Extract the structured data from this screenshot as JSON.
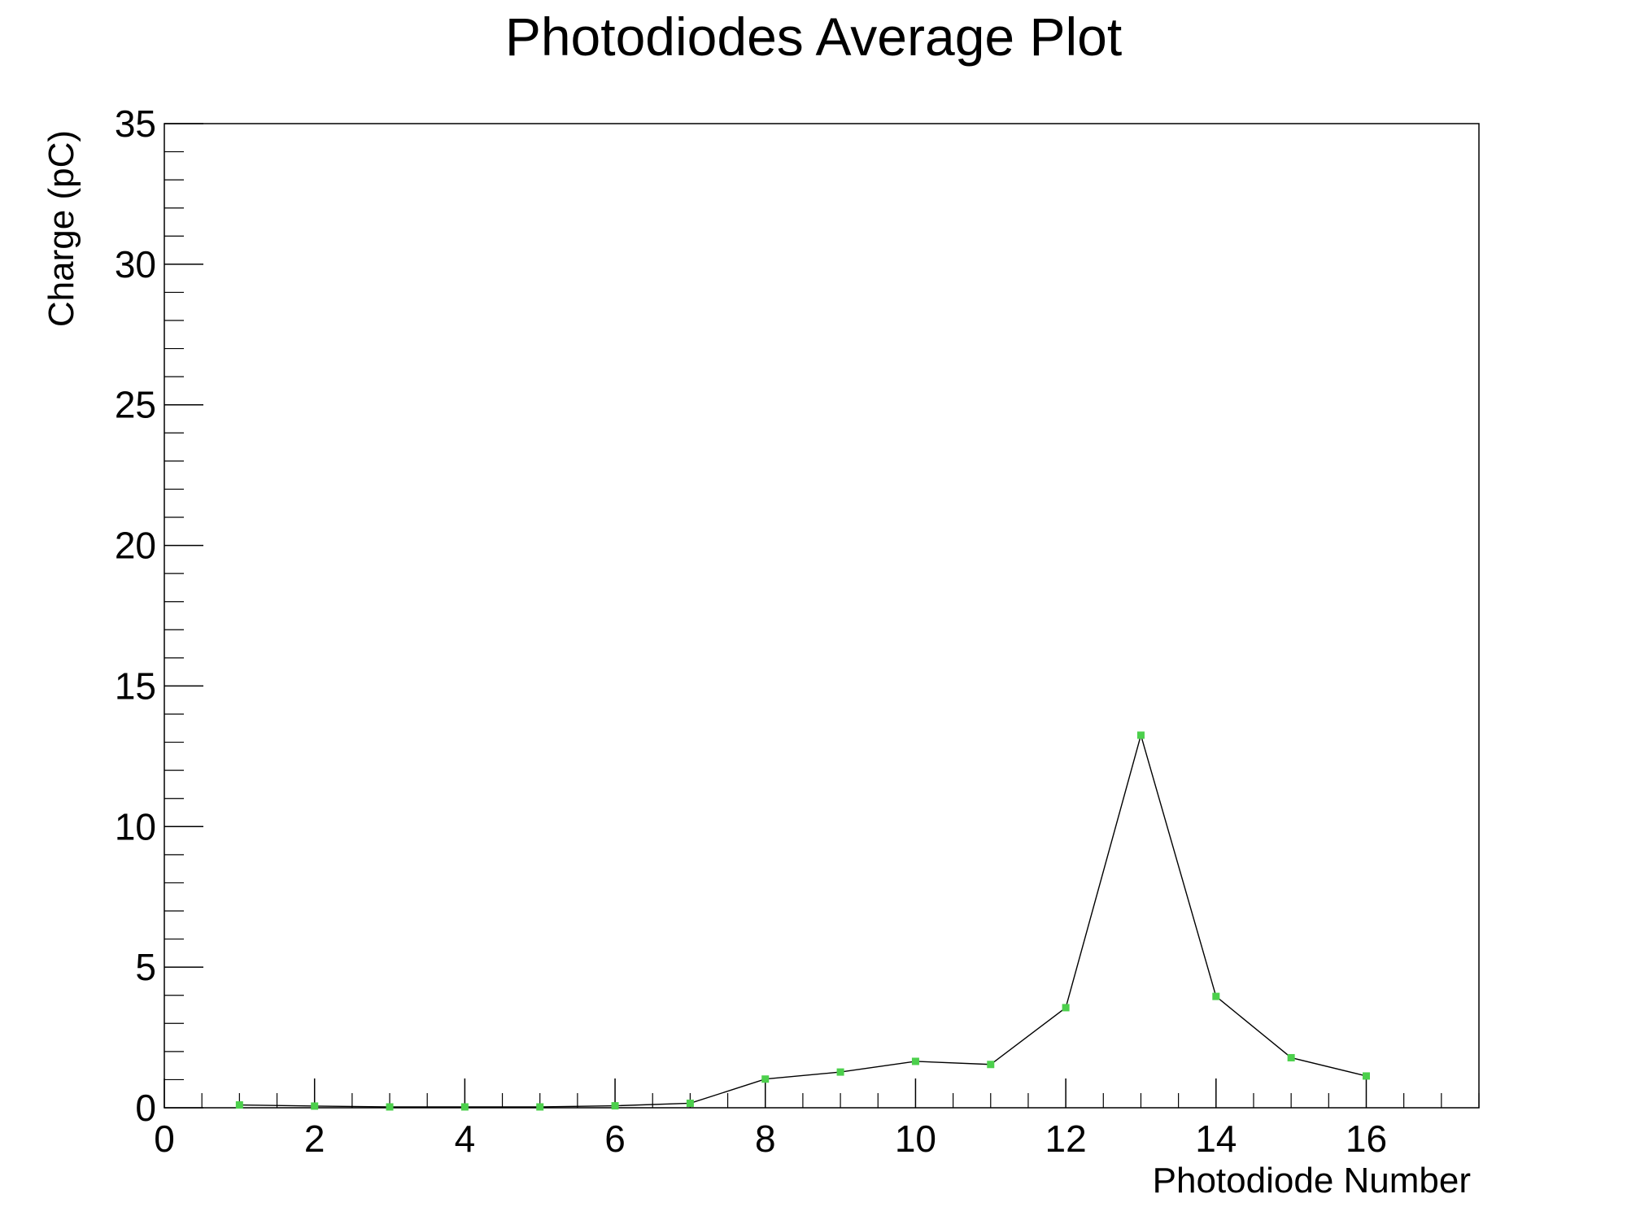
{
  "chart_data": {
    "type": "line",
    "title": "Photodiodes Average Plot",
    "xlabel": "Photodiode Number",
    "ylabel": "Charge (pC)",
    "xlim": [
      0,
      17.5
    ],
    "ylim": [
      0,
      35
    ],
    "x_ticks": [
      0,
      2,
      4,
      6,
      8,
      10,
      12,
      14,
      16
    ],
    "x_tick_labels": [
      "0",
      "2",
      "4",
      "6",
      "8",
      "10",
      "12",
      "14",
      "16"
    ],
    "y_ticks": [
      0,
      5,
      10,
      15,
      20,
      25,
      30,
      35
    ],
    "y_tick_labels": [
      "0",
      "5",
      "10",
      "15",
      "20",
      "25",
      "30",
      "35"
    ],
    "grid": false,
    "line_color": "#000000",
    "marker_color": "#4cd04c",
    "series": [
      {
        "x": [
          1,
          2,
          3,
          4,
          5,
          6,
          7,
          8,
          9,
          10,
          11,
          12,
          13,
          14,
          15,
          16
        ],
        "values": [
          0.1,
          0.06,
          0.03,
          0.03,
          0.03,
          0.07,
          0.16,
          1.02,
          1.27,
          1.65,
          1.54,
          3.56,
          13.25,
          3.96,
          1.78,
          1.13
        ]
      }
    ]
  }
}
